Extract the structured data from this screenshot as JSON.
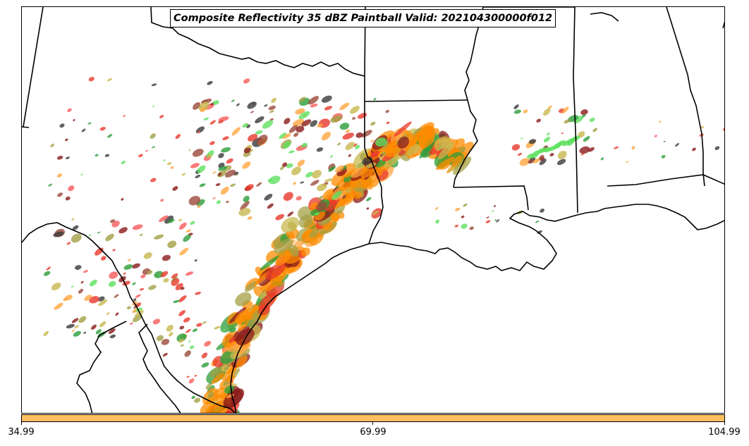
{
  "title": "Composite Reflectivity 35 dBZ Paintball Valid: 202104300000f012",
  "colorbar": {
    "color": "#ffbf5f",
    "tick_labels": [
      "34.99",
      "69.99",
      "104.99"
    ]
  },
  "colors": {
    "orange": "#ff8c00",
    "light_orange": "#ffa640",
    "red": "#e8382a",
    "light_red": "#f75a5a",
    "dark_red": "#8b1a1a",
    "olive": "#a3a046",
    "yellow_olive": "#c8b850",
    "green": "#2c9e3a",
    "light_green": "#5fe05f",
    "dark_gray": "#3a3a3a",
    "brown": "#9a4a3a",
    "pink": "#f06aa0"
  }
}
